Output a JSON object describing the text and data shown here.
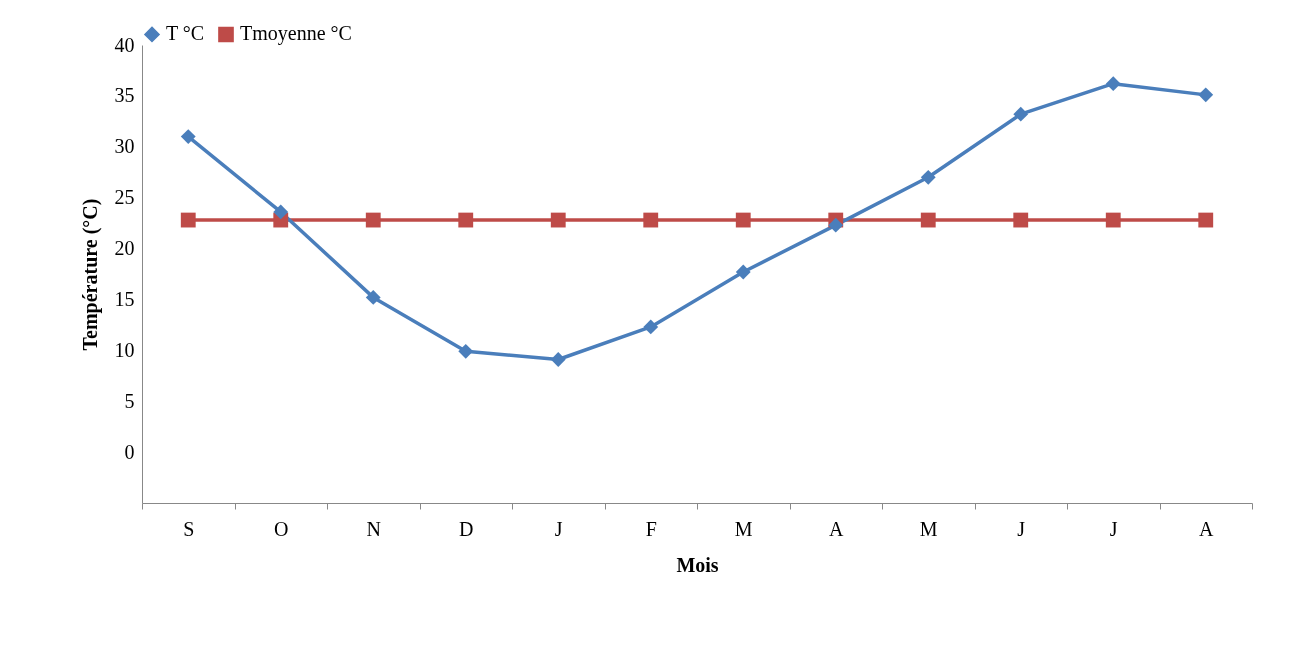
{
  "chart_data": {
    "type": "line",
    "xlabel": "Mois",
    "ylabel": "Température (°C)",
    "categories": [
      "S",
      "O",
      "N",
      "D",
      "J",
      "F",
      "M",
      "A",
      "M",
      "J",
      "J",
      "A"
    ],
    "series": [
      {
        "name": "T °C",
        "color": "#4a7ebb",
        "marker": "diamond",
        "values": [
          31.0,
          23.6,
          15.2,
          9.9,
          9.1,
          12.3,
          17.7,
          22.3,
          27.0,
          33.2,
          36.2,
          35.1
        ]
      },
      {
        "name": "Tmoyenne °C",
        "color": "#be4b48",
        "marker": "square",
        "values": [
          22.8,
          22.8,
          22.8,
          22.8,
          22.8,
          22.8,
          22.8,
          22.8,
          22.8,
          22.8,
          22.8,
          22.8
        ]
      }
    ],
    "ylim": [
      -5,
      40
    ],
    "yticks": [
      0,
      5,
      10,
      15,
      20,
      25,
      30,
      35,
      40
    ],
    "legend": "top",
    "line_style": "solid"
  }
}
